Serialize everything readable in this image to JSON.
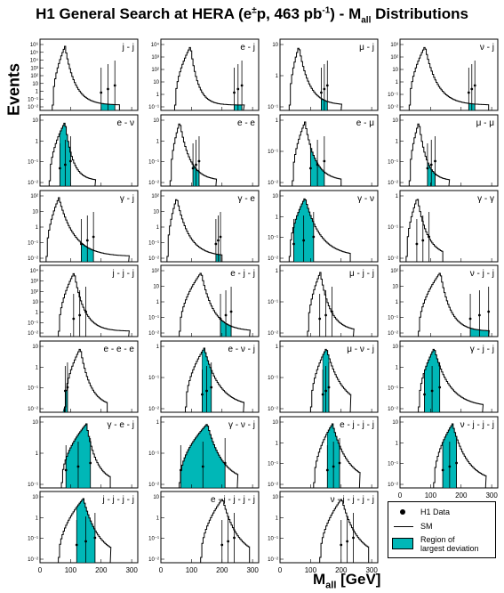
{
  "title_main": "H1 General Search at HERA (e",
  "title_pm": "±",
  "title_mid": "p, 463 pb",
  "title_exp": "-1",
  "title_tail": ") - M",
  "title_sub": "all",
  "title_end": " Distributions",
  "y_axis_label": "Events",
  "x_axis_label": "M",
  "x_axis_sub": "all",
  "x_axis_unit": " [GeV]",
  "legend": {
    "data_label": "H1 Data",
    "sm_label": "SM",
    "region_label_1": "Region of",
    "region_label_2": "largest deviation"
  },
  "colors": {
    "region": "#00b7b7",
    "frame": "#000000"
  },
  "chart_data": {
    "type": "histogram-grid",
    "xlim": [
      0,
      320
    ],
    "x_ticks": [
      0,
      100,
      200,
      300
    ],
    "y_scale": "log",
    "panels": [
      {
        "label": "j - j",
        "yticks": [
          "10⁶",
          "10⁵",
          "10⁴",
          "10³",
          "10²",
          "10",
          "1",
          "10⁻¹",
          "10⁻²"
        ],
        "peak": 80,
        "width": 40,
        "tail": 0.03,
        "range": [
          40,
          260
        ],
        "deviation": [
          200,
          245
        ]
      },
      {
        "label": "e - j",
        "yticks": [
          "10⁴",
          "10³",
          "10²",
          "10",
          "1",
          "10⁻¹"
        ],
        "peak": 95,
        "width": 30,
        "tail": 0.04,
        "range": [
          45,
          270
        ],
        "deviation": [
          240,
          265
        ]
      },
      {
        "label": "μ - j",
        "yticks": [
          "10",
          "1",
          "10⁻¹"
        ],
        "peak": 60,
        "width": 40,
        "tail": 0.03,
        "range": [
          30,
          200
        ],
        "deviation": [
          135,
          155
        ]
      },
      {
        "label": "ν - j",
        "yticks": [
          "10³",
          "10²",
          "10",
          "1",
          "10⁻¹",
          "10⁻²"
        ],
        "peak": 80,
        "width": 40,
        "tail": 0.025,
        "range": [
          30,
          290
        ],
        "deviation": [
          225,
          245
        ]
      },
      {
        "label": "e - ν",
        "yticks": [
          "10",
          "1",
          "10⁻¹",
          "10⁻²"
        ],
        "peak": 80,
        "width": 30,
        "tail": 0.04,
        "range": [
          30,
          180
        ],
        "deviation": [
          65,
          100
        ]
      },
      {
        "label": "e - e",
        "yticks": [
          "10",
          "1",
          "10⁻¹",
          "10⁻²"
        ],
        "peak": 60,
        "width": 25,
        "tail": 0.03,
        "range": [
          30,
          180
        ],
        "deviation": [
          105,
          125
        ]
      },
      {
        "label": "e - μ",
        "yticks": [
          "1",
          "10⁻¹",
          "10⁻²"
        ],
        "peak": 80,
        "width": 30,
        "tail": 0.03,
        "range": [
          40,
          200
        ],
        "deviation": [
          100,
          145
        ]
      },
      {
        "label": "μ - μ",
        "yticks": [
          "10",
          "1",
          "10⁻¹",
          "10⁻²"
        ],
        "peak": 60,
        "width": 30,
        "tail": 0.04,
        "range": [
          30,
          160
        ],
        "deviation": [
          90,
          115
        ]
      },
      {
        "label": "γ - j",
        "yticks": [
          "10²",
          "10",
          "1",
          "10⁻¹",
          "10⁻²"
        ],
        "peak": 60,
        "width": 40,
        "tail": 0.02,
        "range": [
          20,
          290
        ],
        "deviation": [
          135,
          175
        ]
      },
      {
        "label": "γ - e",
        "yticks": [
          "10²",
          "10",
          "1",
          "10⁻¹",
          "10⁻²"
        ],
        "peak": 50,
        "width": 30,
        "tail": 0.025,
        "range": [
          20,
          200
        ],
        "deviation": [
          180,
          195
        ]
      },
      {
        "label": "γ - ν",
        "yticks": [
          "10",
          "1",
          "10⁻¹",
          "10⁻²"
        ],
        "peak": 80,
        "width": 40,
        "tail": 0.02,
        "range": [
          30,
          230
        ],
        "deviation": [
          45,
          110
        ]
      },
      {
        "label": "γ - γ",
        "yticks": [
          "1",
          "10⁻¹",
          "10⁻²"
        ],
        "peak": 55,
        "width": 20,
        "tail": 0.03,
        "range": [
          20,
          140
        ],
        "deviation": [
          0,
          0
        ]
      },
      {
        "label": "j - j - j",
        "yticks": [
          "10⁴",
          "10³",
          "10²",
          "10",
          "1",
          "10⁻¹",
          "10⁻²"
        ],
        "peak": 110,
        "width": 35,
        "tail": 0.03,
        "range": [
          60,
          290
        ],
        "deviation": [
          0,
          0
        ]
      },
      {
        "label": "e - j - j",
        "yticks": [
          "10²",
          "10",
          "1",
          "10⁻¹",
          "10⁻²"
        ],
        "peak": 130,
        "width": 40,
        "tail": 0.025,
        "range": [
          60,
          290
        ],
        "deviation": [
          195,
          230
        ]
      },
      {
        "label": "μ - j - j",
        "yticks": [
          "1",
          "10⁻¹",
          "10⁻²"
        ],
        "peak": 130,
        "width": 30,
        "tail": 0.03,
        "range": [
          90,
          240
        ],
        "deviation": [
          0,
          0
        ]
      },
      {
        "label": "ν - j - j",
        "yticks": [
          "10²",
          "10",
          "1",
          "10⁻¹",
          "10⁻²"
        ],
        "peak": 130,
        "width": 45,
        "tail": 0.03,
        "range": [
          60,
          290
        ],
        "deviation": [
          230,
          290
        ]
      },
      {
        "label": "e - e - e",
        "yticks": [
          "10",
          "1",
          "10⁻¹",
          "10⁻²"
        ],
        "peak": 130,
        "width": 35,
        "tail": 0.03,
        "range": [
          80,
          220
        ],
        "deviation": [
          75,
          90
        ]
      },
      {
        "label": "e - ν - j",
        "yticks": [
          "1",
          "10⁻¹",
          "10⁻²"
        ],
        "peak": 140,
        "width": 40,
        "tail": 0.02,
        "range": [
          80,
          270
        ],
        "deviation": [
          135,
          165
        ]
      },
      {
        "label": "μ - ν - j",
        "yticks": [
          "1",
          "10⁻¹",
          "10⁻²"
        ],
        "peak": 150,
        "width": 30,
        "tail": 0.02,
        "range": [
          100,
          230
        ],
        "deviation": [
          140,
          160
        ]
      },
      {
        "label": "γ - j - j",
        "yticks": [
          "10",
          "1",
          "10⁻¹",
          "10⁻²"
        ],
        "peak": 110,
        "width": 40,
        "tail": 0.02,
        "range": [
          60,
          270
        ],
        "deviation": [
          80,
          130
        ]
      },
      {
        "label": "γ - e - j",
        "yticks": [
          "10",
          "1",
          "10⁻¹"
        ],
        "peak": 150,
        "width": 45,
        "tail": 0.03,
        "range": [
          70,
          230
        ],
        "deviation": [
          85,
          165
        ]
      },
      {
        "label": "γ - ν - j",
        "yticks": [
          "1",
          "10⁻¹",
          "10⁻²"
        ],
        "peak": 150,
        "width": 50,
        "tail": 0.02,
        "range": [
          60,
          250
        ],
        "deviation": [
          65,
          210
        ]
      },
      {
        "label": "e - j - j - j",
        "yticks": [
          "10",
          "1",
          "10⁻¹",
          "10⁻²"
        ],
        "peak": 170,
        "width": 40,
        "tail": 0.02,
        "range": [
          110,
          260
        ],
        "deviation": [
          155,
          195
        ]
      },
      {
        "label": "ν - j - j - j",
        "yticks": [
          "10",
          "1",
          "10⁻¹",
          "10⁻²"
        ],
        "peak": 170,
        "width": 40,
        "tail": 0.02,
        "range": [
          110,
          280
        ],
        "deviation": [
          140,
          185
        ]
      },
      {
        "label": "j - j - j - j",
        "yticks": [
          "10",
          "1",
          "10⁻¹",
          "10⁻²"
        ],
        "peak": 140,
        "width": 45,
        "tail": 0.02,
        "range": [
          60,
          230
        ],
        "deviation": [
          120,
          180
        ]
      },
      {
        "label": "e - j - j - j - j",
        "yticks": [
          "10",
          "1",
          "10⁻¹",
          "10⁻²"
        ],
        "peak": 200,
        "width": 40,
        "tail": 0.02,
        "range": [
          130,
          290
        ],
        "deviation": [
          0,
          0
        ]
      },
      {
        "label": "ν - j - j - j - j",
        "yticks": [
          "10",
          "1",
          "10⁻¹",
          "10⁻²"
        ],
        "peak": 200,
        "width": 40,
        "tail": 0.02,
        "range": [
          130,
          290
        ],
        "deviation": [
          0,
          0
        ]
      }
    ]
  }
}
